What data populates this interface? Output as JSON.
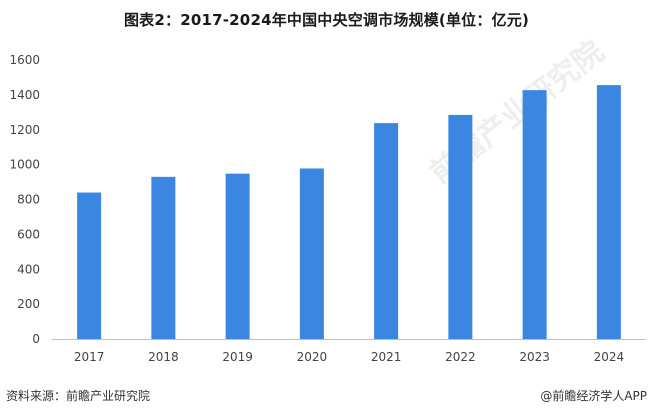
{
  "title": "图表2：2017-2024年中国中央空调市场规模(单位：亿元)",
  "watermark": "前瞻产业研究院",
  "footer": {
    "source": "资料来源：前瞻产业研究院",
    "brand": "@前瞻经济学人APP"
  },
  "colors": {
    "bar": "#3a86e0",
    "axis": "#bfbfbf",
    "tick_text": "#444444"
  },
  "chart_data": {
    "type": "bar",
    "title": "图表2：2017-2024年中国中央空调市场规模(单位：亿元)",
    "categories": [
      "2017",
      "2018",
      "2019",
      "2020",
      "2021",
      "2022",
      "2023",
      "2024"
    ],
    "values": [
      840,
      930,
      948,
      978,
      1238,
      1285,
      1427,
      1456
    ],
    "ylim": [
      0,
      1600
    ],
    "yticks": [
      "0",
      "200",
      "400",
      "600",
      "800",
      "1000",
      "1200",
      "1400",
      "1600"
    ],
    "grid": false,
    "legend": "none"
  }
}
